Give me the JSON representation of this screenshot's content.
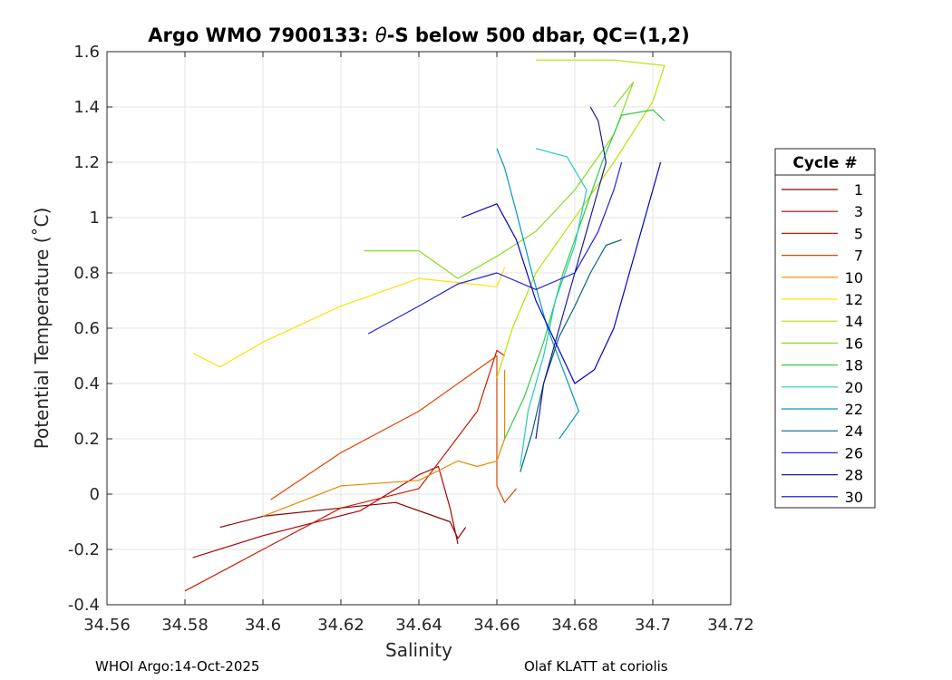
{
  "chart_data": {
    "type": "line",
    "title_prefix": "Argo WMO 7900133: ",
    "title_theta": "θ",
    "title_suffix": "-S below 500 dbar,  QC=(1,2)",
    "xlabel": "Salinity",
    "ylabel": "Potential Temperature (˚C)",
    "xlim": [
      34.56,
      34.72
    ],
    "ylim": [
      -0.4,
      1.6
    ],
    "xticks": [
      34.56,
      34.58,
      34.6,
      34.62,
      34.64,
      34.66,
      34.68,
      34.7,
      34.72
    ],
    "xtick_labels": [
      "34.56",
      "34.58",
      "34.6",
      "34.62",
      "34.64",
      "34.66",
      "34.68",
      "34.7",
      "34.72"
    ],
    "yticks": [
      -0.4,
      -0.2,
      0,
      0.2,
      0.4,
      0.6,
      0.8,
      1,
      1.2,
      1.4,
      1.6
    ],
    "ytick_labels": [
      "-0.4",
      "-0.2",
      "0",
      "0.2",
      "0.4",
      "0.6",
      "0.8",
      "1",
      "1.2",
      "1.4",
      "1.6"
    ],
    "grid": true,
    "legend_title": "Cycle #",
    "legend_position": "right",
    "series": [
      {
        "name": "1",
        "color": "#8b0000",
        "x": [
          34.589,
          34.6,
          34.62,
          34.634,
          34.648,
          34.65,
          34.652
        ],
        "y": [
          -0.12,
          -0.08,
          -0.05,
          -0.03,
          -0.1,
          -0.16,
          -0.12
        ]
      },
      {
        "name": "3",
        "color": "#b00000",
        "x": [
          34.582,
          34.6,
          34.625,
          34.64,
          34.645,
          34.648,
          34.65
        ],
        "y": [
          -0.23,
          -0.15,
          -0.06,
          0.07,
          0.1,
          -0.05,
          -0.18
        ]
      },
      {
        "name": "5",
        "color": "#cc1a00",
        "x": [
          34.58,
          34.6,
          34.62,
          34.64,
          34.655,
          34.66,
          34.662
        ],
        "y": [
          -0.35,
          -0.2,
          -0.05,
          0.02,
          0.3,
          0.52,
          0.5
        ]
      },
      {
        "name": "7",
        "color": "#dd4400",
        "x": [
          34.602,
          34.62,
          34.64,
          34.655,
          34.66,
          34.66,
          34.662,
          34.665
        ],
        "y": [
          -0.02,
          0.15,
          0.3,
          0.45,
          0.5,
          0.03,
          -0.03,
          0.02
        ]
      },
      {
        "name": "10",
        "color": "#e68a00",
        "x": [
          34.6,
          34.62,
          34.64,
          34.65,
          34.655,
          34.66,
          34.662,
          34.662
        ],
        "y": [
          -0.08,
          0.03,
          0.05,
          0.12,
          0.1,
          0.12,
          0.2,
          0.45
        ]
      },
      {
        "name": "12",
        "color": "#ffe000",
        "x": [
          34.582,
          34.589,
          34.6,
          34.62,
          34.64,
          34.66,
          34.662
        ],
        "y": [
          0.51,
          0.46,
          0.55,
          0.68,
          0.78,
          0.75,
          0.82
        ]
      },
      {
        "name": "14",
        "color": "#c0e000",
        "x": [
          34.66,
          34.664,
          34.67,
          34.68,
          34.69,
          34.7,
          34.703,
          34.69,
          34.67
        ],
        "y": [
          0.42,
          0.6,
          0.8,
          1.0,
          1.2,
          1.42,
          1.55,
          1.57,
          1.57
        ]
      },
      {
        "name": "16",
        "color": "#88dd22",
        "x": [
          34.626,
          34.64,
          34.65,
          34.66,
          34.67,
          34.68,
          34.69,
          34.695,
          34.69
        ],
        "y": [
          0.88,
          0.88,
          0.78,
          0.86,
          0.95,
          1.1,
          1.3,
          1.49,
          1.4
        ]
      },
      {
        "name": "18",
        "color": "#33cc44",
        "x": [
          34.662,
          34.667,
          34.672,
          34.677,
          34.682,
          34.687,
          34.692,
          34.7,
          34.703
        ],
        "y": [
          0.2,
          0.35,
          0.55,
          0.8,
          1.0,
          1.2,
          1.37,
          1.39,
          1.35
        ]
      },
      {
        "name": "20",
        "color": "#22ccbb",
        "x": [
          34.666,
          34.668,
          34.672,
          34.675,
          34.68,
          34.683,
          34.678,
          34.67
        ],
        "y": [
          0.1,
          0.3,
          0.5,
          0.7,
          0.9,
          1.1,
          1.22,
          1.25
        ]
      },
      {
        "name": "22",
        "color": "#0099bb",
        "x": [
          34.66,
          34.662,
          34.665,
          34.669,
          34.673,
          34.677,
          34.681,
          34.676
        ],
        "y": [
          1.25,
          1.18,
          1.02,
          0.8,
          0.6,
          0.45,
          0.3,
          0.2
        ]
      },
      {
        "name": "24",
        "color": "#006680",
        "x": [
          34.666,
          34.669,
          34.672,
          34.676,
          34.68,
          34.684,
          34.688,
          34.692
        ],
        "y": [
          0.08,
          0.22,
          0.4,
          0.57,
          0.68,
          0.8,
          0.9,
          0.92
        ]
      },
      {
        "name": "26",
        "color": "#2222dd",
        "x": [
          34.627,
          34.64,
          34.65,
          34.66,
          34.67,
          34.68,
          34.686,
          34.69,
          34.692
        ],
        "y": [
          0.58,
          0.68,
          0.76,
          0.8,
          0.74,
          0.8,
          0.95,
          1.1,
          1.2
        ]
      },
      {
        "name": "28",
        "color": "#1a1a99",
        "x": [
          34.67,
          34.672,
          34.676,
          34.68,
          34.684,
          34.688,
          34.686,
          34.684
        ],
        "y": [
          0.2,
          0.4,
          0.6,
          0.8,
          1.0,
          1.2,
          1.35,
          1.4
        ]
      },
      {
        "name": "30",
        "color": "#0000cc",
        "x": [
          34.651,
          34.66,
          34.665,
          34.67,
          34.675,
          34.68,
          34.685,
          34.69,
          34.696,
          34.702
        ],
        "y": [
          1.0,
          1.05,
          0.92,
          0.7,
          0.55,
          0.4,
          0.45,
          0.6,
          0.9,
          1.2
        ]
      }
    ]
  },
  "footer": {
    "left": "WHOI Argo:14-Oct-2025",
    "right": "Olaf KLATT at coriolis"
  }
}
